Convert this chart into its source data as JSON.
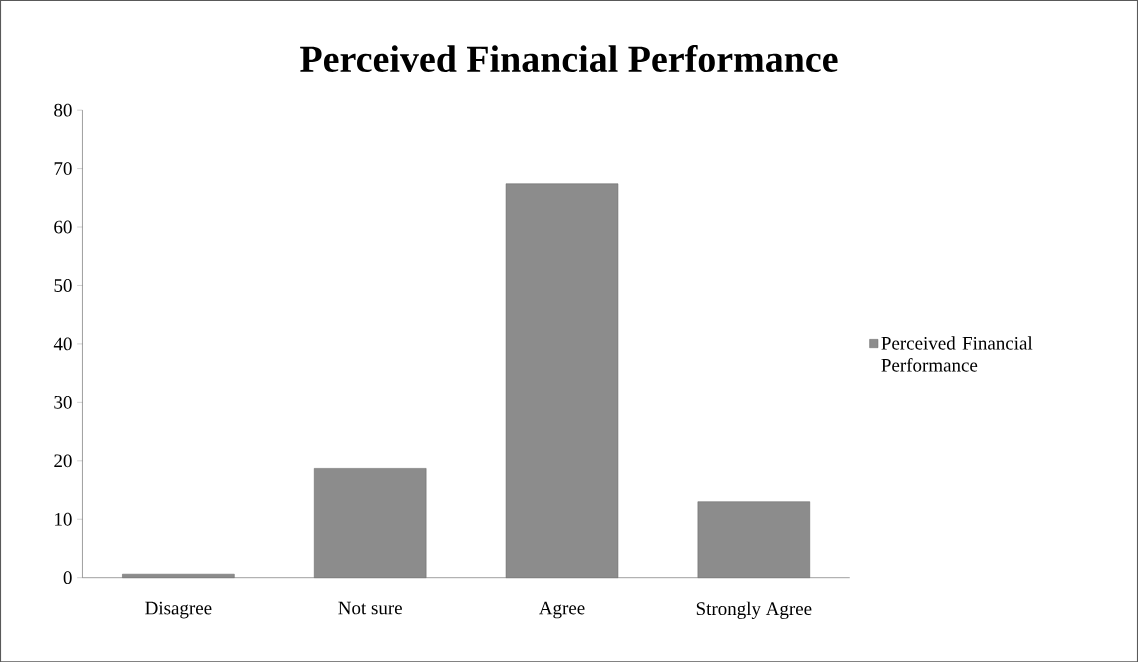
{
  "chart_data": {
    "type": "bar",
    "title": "Perceived Financial Performance",
    "categories": [
      "Disagree",
      "Not sure",
      "Agree",
      "Strongly Agree"
    ],
    "series": [
      {
        "name": "Perceived Financial Performance",
        "color": "#8c8c8c",
        "values": [
          0.6,
          18.7,
          67.4,
          13.0
        ]
      }
    ],
    "ylim": [
      0,
      80
    ],
    "yticks": [
      0,
      10,
      20,
      30,
      40,
      50,
      60,
      70,
      80
    ],
    "grid": false,
    "legend": "right"
  }
}
